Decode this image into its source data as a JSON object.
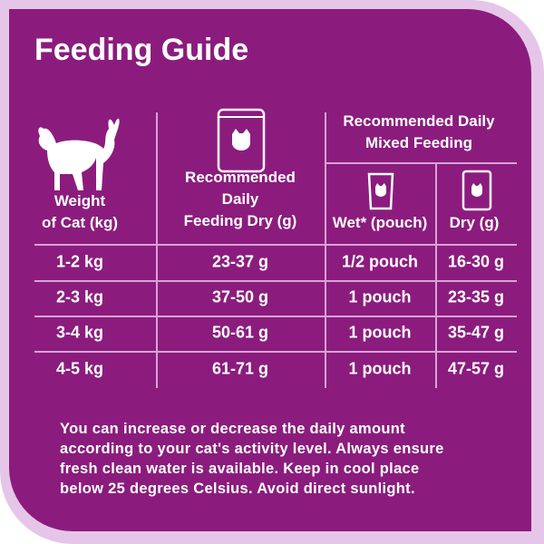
{
  "title": "Feeding Guide",
  "table": {
    "headers": {
      "weight_lines": [
        "Weight",
        "of Cat (kg)"
      ],
      "dry_lines": [
        "Recommended",
        "Daily",
        "Feeding Dry (g)"
      ],
      "mixed_lines": [
        "Recommended Daily",
        "Mixed Feeding"
      ],
      "wet": "Wet* (pouch)",
      "mixed_dry": "Dry (g)"
    },
    "rows": [
      [
        "1-2 kg",
        "23-37 g",
        "1/2 pouch",
        "16-30 g"
      ],
      [
        "2-3 kg",
        "37-50 g",
        "1 pouch",
        "23-35 g"
      ],
      [
        "3-4 kg",
        "50-61 g",
        "1 pouch",
        "35-47 g"
      ],
      [
        "4-5 kg",
        "61-71 g",
        "1 pouch",
        "47-57 g"
      ]
    ]
  },
  "footnote_lines": [
    "You can increase or decrease the daily amount",
    "according to your cat's activity level. Always ensure",
    "fresh clean water is available. Keep in cool place",
    "below 25 degrees Celsius. Avoid direct sunlight."
  ]
}
